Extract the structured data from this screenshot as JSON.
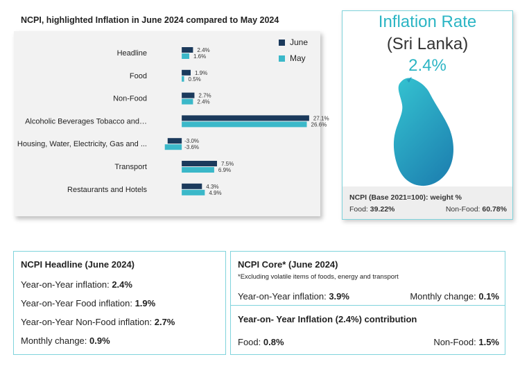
{
  "chart_data": {
    "type": "bar",
    "orientation": "horizontal",
    "title": "NCPI, highlighted Inflation in June 2024 compared to May 2024",
    "categories": [
      "Headline",
      "Food",
      "Non-Food",
      "Alcoholic Beverages Tobacco and…",
      "Housing, Water, Electricity, Gas and ...",
      "Transport",
      "Restaurants and Hotels"
    ],
    "series": [
      {
        "name": "June",
        "color": "#1b3a5c",
        "values": [
          2.4,
          1.9,
          2.7,
          27.1,
          -3.0,
          7.5,
          4.3
        ]
      },
      {
        "name": "May",
        "color": "#3bb8c9",
        "values": [
          1.6,
          0.5,
          2.4,
          26.6,
          -3.6,
          6.9,
          4.9
        ]
      }
    ],
    "value_labels": {
      "June": [
        "2.4%",
        "1.9%",
        "2.7%",
        "27.1%",
        "-3.0%",
        "7.5%",
        "4.3%"
      ],
      "May": [
        "1.6%",
        "0.5%",
        "2.4%",
        "26.6%",
        "-3.6%",
        "6.9%",
        "4.9%"
      ]
    },
    "xlim": [
      -4,
      28
    ],
    "legend": "top-right"
  },
  "map_card": {
    "title": "Inflation Rate",
    "subtitle": "(Sri Lanka)",
    "value": "2.4%",
    "weight_title": "NCPI (Base 2021=100): weight %",
    "food_label": "Food:",
    "food_value": "39.22%",
    "nonfood_label": "Non-Food:",
    "nonfood_value": "60.78%",
    "map_gradient": [
      "#35c4d1",
      "#1f86b3"
    ]
  },
  "headline_box": {
    "title": "NCPI Headline (June 2024)",
    "lines": [
      {
        "label": "Year-on-Year inflation:",
        "value": "2.4%"
      },
      {
        "label": "Year-on-Year Food inflation:",
        "value": "1.9%"
      },
      {
        "label": "Year-on-Year Non-Food inflation:",
        "value": "2.7%"
      },
      {
        "label": "Monthly change:",
        "value": "0.9%"
      }
    ]
  },
  "core_box": {
    "title": "NCPI Core* (June 2024)",
    "note": "*Excluding volatile items of foods, energy and transport",
    "yoy_label": "Year-on-Year inflation:",
    "yoy_value": "3.9%",
    "monthly_label": "Monthly change:",
    "monthly_value": "0.1%"
  },
  "contribution_box": {
    "title": "Year-on- Year Inflation (2.4%) contribution",
    "food_label": "Food:",
    "food_value": "0.8%",
    "nonfood_label": "Non-Food:",
    "nonfood_value": "1.5%"
  }
}
